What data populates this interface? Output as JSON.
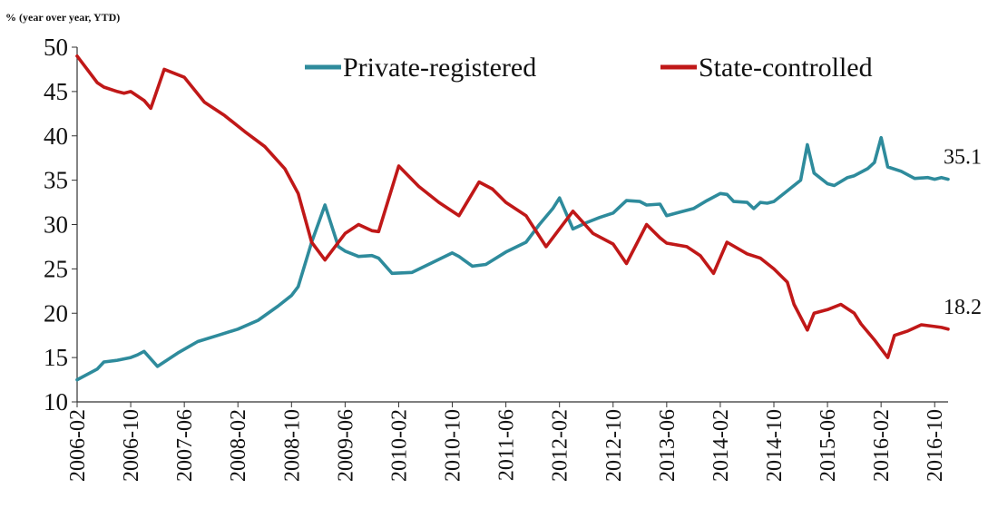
{
  "chart_data": {
    "type": "line",
    "title": "",
    "unit_label": "% (year over year, YTD)",
    "ylim": [
      10,
      50
    ],
    "yticks": [
      10,
      15,
      20,
      25,
      30,
      35,
      40,
      45,
      50
    ],
    "xticks": [
      "2006-02",
      "2006-10",
      "2007-06",
      "2008-02",
      "2008-10",
      "2009-06",
      "2010-02",
      "2010-10",
      "2011-06",
      "2012-02",
      "2012-10",
      "2013-06",
      "2014-02",
      "2014-10",
      "2015-06",
      "2016-02",
      "2016-10"
    ],
    "grid": false,
    "legend_position": "top-right",
    "series": [
      {
        "name": "Private-registered",
        "color": "#2e8b9c",
        "end_label": "35.1",
        "points": [
          [
            "2006-02",
            12.5
          ],
          [
            "2006-05",
            13.7
          ],
          [
            "2006-06",
            14.5
          ],
          [
            "2006-08",
            14.7
          ],
          [
            "2006-10",
            15.0
          ],
          [
            "2006-11",
            15.3
          ],
          [
            "2006-12",
            15.7
          ],
          [
            "2007-02",
            14.0
          ],
          [
            "2007-05",
            15.5
          ],
          [
            "2007-08",
            16.8
          ],
          [
            "2007-11",
            17.5
          ],
          [
            "2008-02",
            18.2
          ],
          [
            "2008-05",
            19.2
          ],
          [
            "2008-08",
            20.8
          ],
          [
            "2008-10",
            22.0
          ],
          [
            "2008-11",
            23.0
          ],
          [
            "2009-01",
            28.0
          ],
          [
            "2009-03",
            32.2
          ],
          [
            "2009-05",
            27.5
          ],
          [
            "2009-06",
            27.0
          ],
          [
            "2009-08",
            26.4
          ],
          [
            "2009-10",
            26.5
          ],
          [
            "2009-11",
            26.2
          ],
          [
            "2010-01",
            24.5
          ],
          [
            "2010-04",
            24.6
          ],
          [
            "2010-07",
            25.7
          ],
          [
            "2010-10",
            26.8
          ],
          [
            "2010-11",
            26.4
          ],
          [
            "2011-01",
            25.3
          ],
          [
            "2011-03",
            25.5
          ],
          [
            "2011-06",
            26.9
          ],
          [
            "2011-09",
            28.0
          ],
          [
            "2011-11",
            30.0
          ],
          [
            "2012-01",
            31.8
          ],
          [
            "2012-02",
            33.0
          ],
          [
            "2012-04",
            29.5
          ],
          [
            "2012-06",
            30.2
          ],
          [
            "2012-08",
            30.8
          ],
          [
            "2012-10",
            31.3
          ],
          [
            "2012-12",
            32.7
          ],
          [
            "2013-02",
            32.6
          ],
          [
            "2013-03",
            32.2
          ],
          [
            "2013-05",
            32.3
          ],
          [
            "2013-06",
            31.0
          ],
          [
            "2013-08",
            31.4
          ],
          [
            "2013-10",
            31.8
          ],
          [
            "2013-12",
            32.7
          ],
          [
            "2014-02",
            33.5
          ],
          [
            "2014-03",
            33.4
          ],
          [
            "2014-04",
            32.6
          ],
          [
            "2014-06",
            32.5
          ],
          [
            "2014-07",
            31.8
          ],
          [
            "2014-08",
            32.5
          ],
          [
            "2014-09",
            32.4
          ],
          [
            "2014-10",
            32.6
          ],
          [
            "2014-12",
            33.8
          ],
          [
            "2015-02",
            35.0
          ],
          [
            "2015-03",
            39.0
          ],
          [
            "2015-04",
            35.8
          ],
          [
            "2015-06",
            34.6
          ],
          [
            "2015-07",
            34.4
          ],
          [
            "2015-09",
            35.3
          ],
          [
            "2015-10",
            35.5
          ],
          [
            "2015-12",
            36.3
          ],
          [
            "2016-01",
            37.0
          ],
          [
            "2016-02",
            39.8
          ],
          [
            "2016-03",
            36.5
          ],
          [
            "2016-05",
            36.0
          ],
          [
            "2016-07",
            35.2
          ],
          [
            "2016-09",
            35.3
          ],
          [
            "2016-10",
            35.1
          ],
          [
            "2016-11",
            35.3
          ],
          [
            "2016-12",
            35.1
          ]
        ]
      },
      {
        "name": "State-controlled",
        "color": "#c01818",
        "end_label": "18.2",
        "points": [
          [
            "2006-02",
            49.0
          ],
          [
            "2006-03",
            48.0
          ],
          [
            "2006-05",
            46.0
          ],
          [
            "2006-06",
            45.5
          ],
          [
            "2006-08",
            45.0
          ],
          [
            "2006-09",
            44.8
          ],
          [
            "2006-10",
            45.0
          ],
          [
            "2006-12",
            44.0
          ],
          [
            "2007-01",
            43.1
          ],
          [
            "2007-03",
            47.5
          ],
          [
            "2007-06",
            46.6
          ],
          [
            "2007-09",
            43.8
          ],
          [
            "2007-12",
            42.3
          ],
          [
            "2008-03",
            40.5
          ],
          [
            "2008-06",
            38.8
          ],
          [
            "2008-09",
            36.3
          ],
          [
            "2008-11",
            33.5
          ],
          [
            "2009-01",
            28.0
          ],
          [
            "2009-03",
            26.0
          ],
          [
            "2009-06",
            29.0
          ],
          [
            "2009-08",
            30.0
          ],
          [
            "2009-10",
            29.3
          ],
          [
            "2009-11",
            29.2
          ],
          [
            "2010-02",
            36.6
          ],
          [
            "2010-05",
            34.3
          ],
          [
            "2010-08",
            32.5
          ],
          [
            "2010-11",
            31.0
          ],
          [
            "2011-02",
            34.8
          ],
          [
            "2011-04",
            34.0
          ],
          [
            "2011-06",
            32.5
          ],
          [
            "2011-09",
            31.0
          ],
          [
            "2011-12",
            27.5
          ],
          [
            "2012-04",
            31.5
          ],
          [
            "2012-07",
            29.0
          ],
          [
            "2012-10",
            27.8
          ],
          [
            "2012-12",
            25.6
          ],
          [
            "2013-03",
            30.0
          ],
          [
            "2013-05",
            28.5
          ],
          [
            "2013-06",
            27.9
          ],
          [
            "2013-09",
            27.5
          ],
          [
            "2013-11",
            26.5
          ],
          [
            "2014-01",
            24.5
          ],
          [
            "2014-03",
            28.0
          ],
          [
            "2014-06",
            26.7
          ],
          [
            "2014-08",
            26.2
          ],
          [
            "2014-10",
            25.0
          ],
          [
            "2014-12",
            23.5
          ],
          [
            "2015-01",
            21.0
          ],
          [
            "2015-03",
            18.1
          ],
          [
            "2015-04",
            20.0
          ],
          [
            "2015-06",
            20.4
          ],
          [
            "2015-08",
            21.0
          ],
          [
            "2015-10",
            20.0
          ],
          [
            "2015-11",
            18.8
          ],
          [
            "2016-01",
            17.0
          ],
          [
            "2016-03",
            15.0
          ],
          [
            "2016-04",
            17.5
          ],
          [
            "2016-06",
            18.0
          ],
          [
            "2016-08",
            18.7
          ],
          [
            "2016-10",
            18.5
          ],
          [
            "2016-11",
            18.4
          ],
          [
            "2016-12",
            18.2
          ]
        ]
      }
    ]
  }
}
